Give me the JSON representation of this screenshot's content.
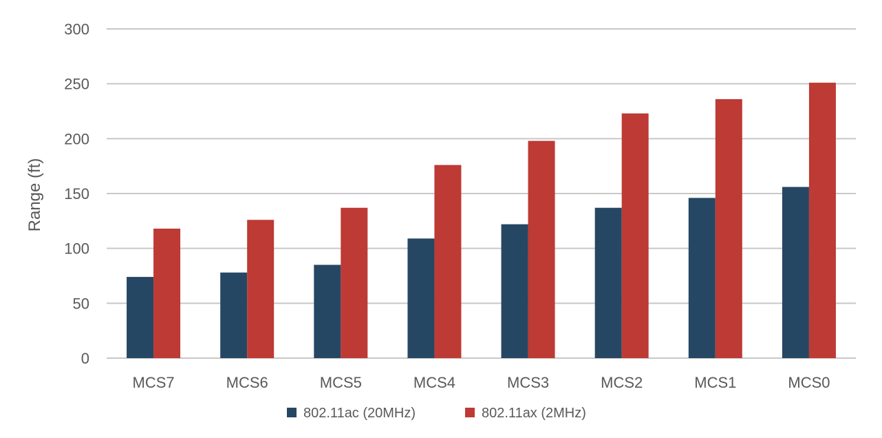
{
  "chart_data": {
    "type": "bar",
    "title": "",
    "xlabel": "",
    "ylabel": "Range (ft)",
    "ylim": [
      0,
      300
    ],
    "yticks": [
      0,
      50,
      100,
      150,
      200,
      250,
      300
    ],
    "grid": true,
    "legend_position": "bottom",
    "categories": [
      "MCS7",
      "MCS6",
      "MCS5",
      "MCS4",
      "MCS3",
      "MCS2",
      "MCS1",
      "MCS0"
    ],
    "series": [
      {
        "name": "802.11ac (20MHz)",
        "color": "#264763",
        "values": [
          74,
          78,
          85,
          109,
          122,
          137,
          146,
          156
        ]
      },
      {
        "name": "802.11ax (2MHz)",
        "color": "#bd3a35",
        "values": [
          118,
          126,
          137,
          176,
          198,
          223,
          236,
          251
        ]
      }
    ],
    "colors": {
      "gridline": "#c8c8c8",
      "text": "#595959"
    }
  }
}
